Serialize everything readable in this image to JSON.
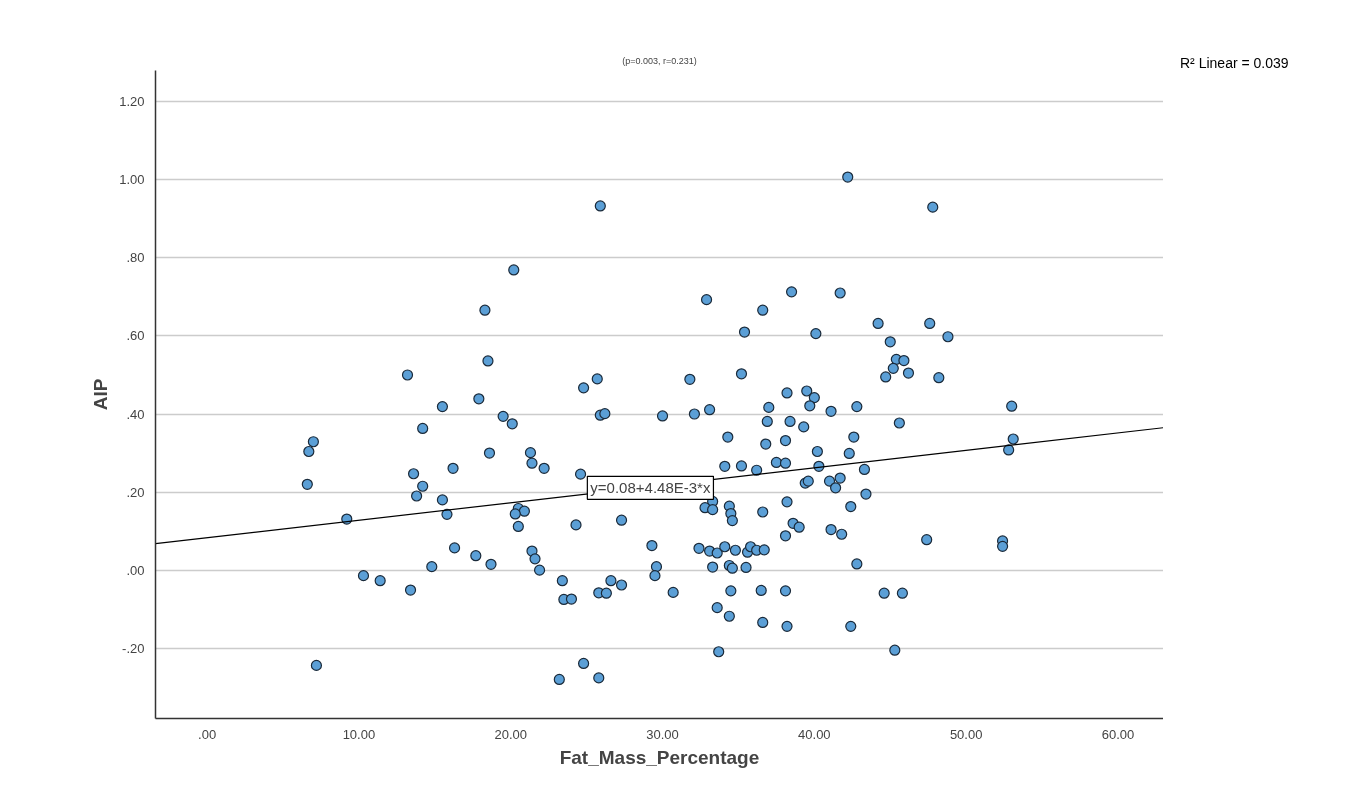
{
  "chart_data": {
    "type": "scatter",
    "title": "(p=0.003, r=0.231)",
    "xlabel": "Fat_Mass_Percentage",
    "ylabel": "AIP",
    "xlim": [
      -3.4,
      63
    ],
    "ylim": [
      -0.38,
      1.28
    ],
    "xticks": [
      {
        "value": 0,
        "label": ".00"
      },
      {
        "value": 10,
        "label": "10.00"
      },
      {
        "value": 20,
        "label": "20.00"
      },
      {
        "value": 30,
        "label": "30.00"
      },
      {
        "value": 40,
        "label": "40.00"
      },
      {
        "value": 50,
        "label": "50.00"
      },
      {
        "value": 60,
        "label": "60.00"
      }
    ],
    "yticks": [
      {
        "value": -0.2,
        "label": "-.20"
      },
      {
        "value": 0,
        "label": ".00"
      },
      {
        "value": 0.2,
        "label": ".20"
      },
      {
        "value": 0.4,
        "label": ".40"
      },
      {
        "value": 0.6,
        "label": ".60"
      },
      {
        "value": 0.8,
        "label": ".80"
      },
      {
        "value": 1.0,
        "label": "1.00"
      },
      {
        "value": 1.2,
        "label": "1.20"
      }
    ],
    "grid": "y",
    "marker": "circle",
    "annotations": [
      {
        "text": "y=0.08+4.48E-3*x",
        "x": 29.2,
        "y": 0.211
      },
      "R² Linear = 0.039"
    ],
    "series": [
      {
        "type": "scatter",
        "color": "#5b9fd6",
        "x": [
          25.9,
          20.2,
          18.3,
          18.5,
          13.2,
          25.7,
          24.8,
          42.2,
          47.8,
          32.9,
          38.5,
          41.7,
          36.6,
          35.4,
          40.1,
          44.2,
          47.6,
          48.8,
          45.0,
          45.4,
          45.9,
          45.2,
          44.7,
          46.2,
          48.2,
          31.8,
          35.2,
          38.2,
          39.5,
          40.0,
          17.9,
          15.5,
          19.5,
          20.1,
          25.9,
          26.2,
          30.0,
          14.2,
          7.0,
          6.7,
          18.6,
          21.3,
          21.4,
          22.2,
          16.2,
          13.6,
          6.6,
          14.2,
          13.8,
          15.5,
          24.6,
          9.2,
          15.8,
          20.5,
          20.9,
          20.3,
          20.5,
          24.3,
          27.3,
          16.3,
          17.7,
          18.7,
          14.8,
          21.4,
          21.6,
          21.9,
          29.3,
          29.6,
          29.5,
          30.7,
          10.3,
          11.4,
          13.4,
          23.4,
          23.5,
          24.0,
          25.8,
          26.3,
          26.6,
          27.3,
          7.2,
          24.8,
          23.2,
          25.8,
          32.1,
          33.1,
          37.0,
          36.9,
          38.4,
          39.3,
          39.7,
          41.1,
          42.8,
          53.0,
          45.6,
          53.1,
          52.8,
          34.3,
          38.1,
          36.8,
          42.6,
          40.2,
          42.3,
          37.5,
          38.1,
          34.1,
          35.2,
          36.2,
          40.3,
          43.3,
          39.4,
          39.6,
          41.0,
          41.7,
          41.4,
          43.4,
          33.3,
          32.8,
          33.3,
          34.4,
          34.5,
          34.6,
          36.6,
          38.2,
          42.4,
          38.6,
          39.0,
          41.1,
          41.8,
          38.1,
          47.4,
          52.4,
          52.4,
          32.4,
          33.1,
          33.6,
          34.1,
          34.8,
          35.6,
          35.8,
          36.2,
          36.7,
          33.3,
          34.4,
          34.6,
          35.5,
          42.8,
          34.5,
          36.5,
          38.1,
          44.6,
          45.8,
          33.6,
          34.4,
          36.6,
          38.2,
          42.4,
          33.7,
          45.3
        ],
        "values": [
          0.933,
          0.769,
          0.666,
          0.536,
          0.5,
          0.49,
          0.467,
          1.007,
          0.93,
          0.693,
          0.713,
          0.71,
          0.666,
          0.61,
          0.606,
          0.632,
          0.632,
          0.598,
          0.585,
          0.54,
          0.537,
          0.517,
          0.495,
          0.505,
          0.493,
          0.489,
          0.503,
          0.454,
          0.459,
          0.442,
          0.439,
          0.419,
          0.394,
          0.375,
          0.397,
          0.401,
          0.395,
          0.363,
          0.329,
          0.304,
          0.3,
          0.301,
          0.274,
          0.261,
          0.261,
          0.247,
          0.22,
          0.215,
          0.19,
          0.18,
          0.246,
          0.131,
          0.143,
          0.158,
          0.151,
          0.144,
          0.112,
          0.116,
          0.128,
          0.057,
          0.037,
          0.015,
          0.009,
          0.049,
          0.029,
          0.0,
          0.063,
          0.009,
          -0.014,
          -0.057,
          -0.014,
          -0.027,
          -0.051,
          -0.027,
          -0.075,
          -0.074,
          -0.058,
          -0.059,
          -0.027,
          -0.038,
          -0.244,
          -0.239,
          -0.28,
          -0.276,
          0.4,
          0.411,
          0.417,
          0.381,
          0.381,
          0.367,
          0.421,
          0.407,
          0.419,
          0.42,
          0.377,
          0.336,
          0.308,
          0.341,
          0.332,
          0.323,
          0.341,
          0.304,
          0.299,
          0.276,
          0.274,
          0.266,
          0.267,
          0.256,
          0.266,
          0.258,
          0.223,
          0.228,
          0.228,
          0.236,
          0.211,
          0.195,
          0.176,
          0.16,
          0.155,
          0.164,
          0.145,
          0.127,
          0.149,
          0.175,
          0.163,
          0.12,
          0.11,
          0.104,
          0.092,
          0.088,
          0.078,
          0.075,
          0.061,
          0.056,
          0.049,
          0.044,
          0.06,
          0.051,
          0.046,
          0.06,
          0.051,
          0.052,
          0.008,
          0.012,
          0.005,
          0.007,
          0.016,
          -0.053,
          -0.052,
          -0.053,
          -0.059,
          -0.059,
          -0.096,
          -0.118,
          -0.134,
          -0.144,
          -0.144,
          -0.209,
          -0.205
        ]
      },
      {
        "type": "line",
        "color": "#000000",
        "marker": "none",
        "x": [
          -3.4,
          63
        ],
        "values": [
          0.068,
          0.365
        ]
      }
    ]
  }
}
